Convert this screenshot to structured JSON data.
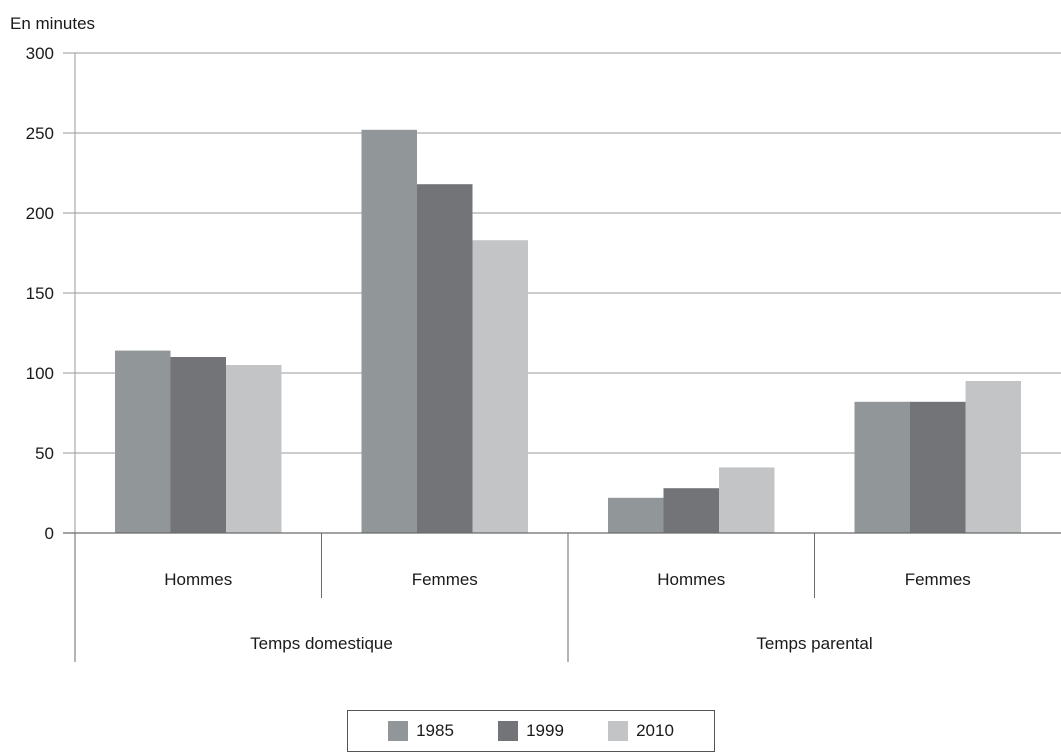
{
  "chart_data": {
    "type": "bar",
    "ylabel": "En minutes",
    "ylim": [
      0,
      300
    ],
    "yticks": [
      "0",
      "50",
      "100",
      "150",
      "200",
      "250",
      "300"
    ],
    "grid": true,
    "legend_position": "bottom",
    "categories": [
      "Hommes",
      "Femmes",
      "Hommes",
      "Femmes"
    ],
    "groups": [
      {
        "label": "Temps domestique"
      },
      {
        "label": "Temps parental"
      }
    ],
    "series": [
      {
        "name": "1985",
        "color": "#919699",
        "values": [
          114,
          252,
          22,
          82
        ]
      },
      {
        "name": "1999",
        "color": "#727478",
        "values": [
          110,
          218,
          28,
          82
        ]
      },
      {
        "name": "2010",
        "color": "#c3c4c6",
        "values": [
          105,
          183,
          41,
          95
        ]
      }
    ]
  }
}
